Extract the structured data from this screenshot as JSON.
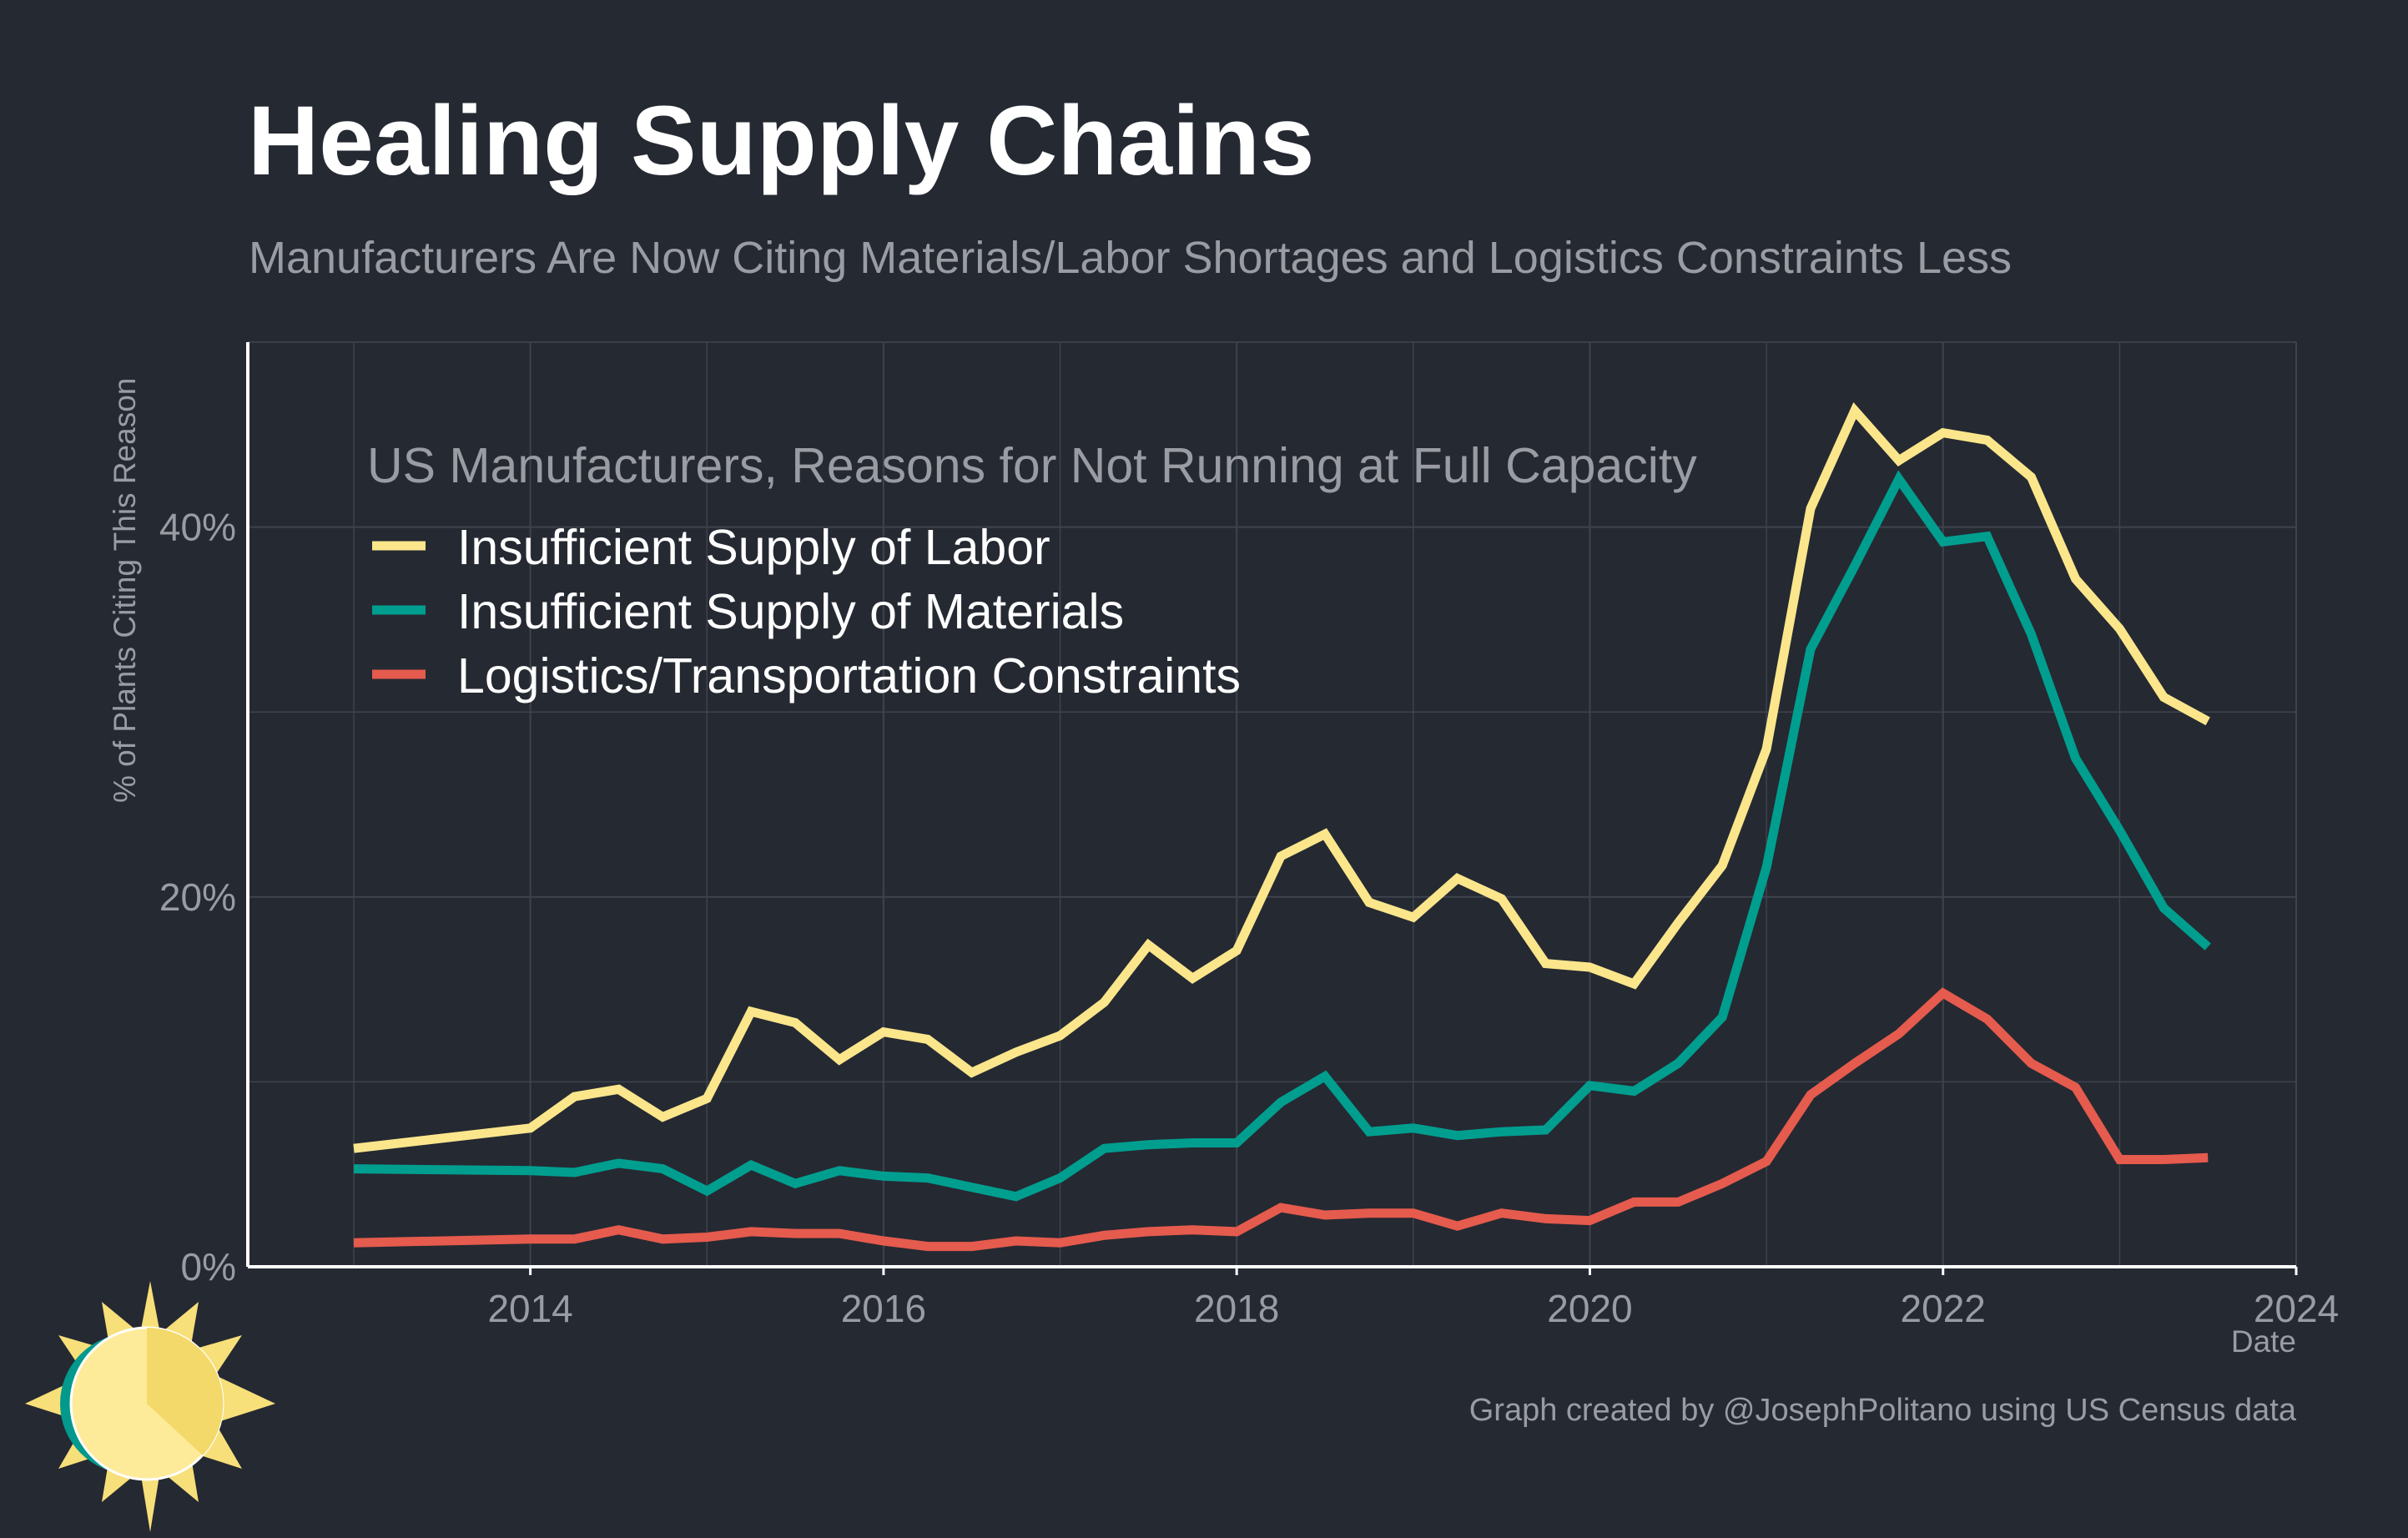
{
  "header": {
    "title": "Healing Supply Chains",
    "subtitle": "Manufacturers Are Now Citing Materials/Labor Shortages and Logistics Constraints Less"
  },
  "caption": "Graph created by @JosephPolitano using US Census data",
  "colors": {
    "background": "#252932",
    "grid": "#3f434c",
    "axis": "#ffffff",
    "muted_text": "#9a9ca3",
    "labor": "#fbe68c",
    "materials": "#009e8f",
    "logistics": "#e55b4d",
    "logo_sun": "#f7df7a",
    "logo_sun_face": "#fdeb9a",
    "logo_ring": "#03998c"
  },
  "logo": {
    "icon": "sun-icon"
  },
  "chart_data": {
    "type": "line",
    "title": "Healing Supply Chains",
    "subtitle": "Manufacturers Are Now Citing Materials/Labor Shortages and Logistics Constraints Less",
    "xlabel": "Date",
    "ylabel": "% of Plants Citing This Reason",
    "xlim": [
      2012.4,
      2024
    ],
    "ylim": [
      0,
      50
    ],
    "x_ticks": [
      2014,
      2016,
      2018,
      2020,
      2022,
      2024
    ],
    "x_tick_labels": [
      "2014",
      "2016",
      "2018",
      "2020",
      "2022",
      "2024"
    ],
    "y_ticks": [
      0,
      20,
      40
    ],
    "y_tick_labels": [
      "0%",
      "20%",
      "40%"
    ],
    "grid": true,
    "legend": {
      "title": "US Manufacturers, Reasons for Not Running at Full Capacity",
      "placement": "top-left"
    },
    "x": [
      2013.0,
      2014.0,
      2014.25,
      2014.5,
      2014.75,
      2015.0,
      2015.25,
      2015.5,
      2015.75,
      2016.0,
      2016.25,
      2016.5,
      2016.75,
      2017.0,
      2017.25,
      2017.5,
      2017.75,
      2018.0,
      2018.25,
      2018.5,
      2018.75,
      2019.0,
      2019.25,
      2019.5,
      2019.75,
      2020.0,
      2020.25,
      2020.5,
      2020.75,
      2021.0,
      2021.25,
      2021.5,
      2021.75,
      2022.0,
      2022.25,
      2022.5,
      2022.75,
      2023.0,
      2023.25,
      2023.5
    ],
    "series": [
      {
        "name": "Insufficient Supply of Labor",
        "color": "#fbe68c",
        "values": [
          6.4,
          7.5,
          9.2,
          9.6,
          8.1,
          9.1,
          13.8,
          13.2,
          11.2,
          12.7,
          12.3,
          10.5,
          11.6,
          12.5,
          14.3,
          17.4,
          15.6,
          17.1,
          22.2,
          23.4,
          19.7,
          18.9,
          21.0,
          19.9,
          16.4,
          16.2,
          15.3,
          18.6,
          21.7,
          28.0,
          41.0,
          46.3,
          43.6,
          45.1,
          44.7,
          42.7,
          37.2,
          34.5,
          30.8,
          29.5
        ]
      },
      {
        "name": "Insufficient Supply of Materials",
        "color": "#009e8f",
        "values": [
          5.3,
          5.2,
          5.1,
          5.6,
          5.3,
          4.1,
          5.5,
          4.5,
          5.2,
          4.9,
          4.8,
          4.3,
          3.8,
          4.8,
          6.4,
          6.6,
          6.7,
          6.7,
          8.9,
          10.3,
          7.3,
          7.5,
          7.1,
          7.3,
          7.4,
          9.8,
          9.5,
          11.0,
          13.5,
          21.6,
          33.4,
          37.9,
          42.6,
          39.2,
          39.5,
          34.2,
          27.5,
          23.6,
          19.4,
          17.3
        ]
      },
      {
        "name": "Logistics/Transportation Constraints",
        "color": "#e55b4d",
        "values": [
          1.3,
          1.5,
          1.5,
          2.0,
          1.5,
          1.6,
          1.9,
          1.8,
          1.8,
          1.4,
          1.1,
          1.1,
          1.4,
          1.3,
          1.7,
          1.9,
          2.0,
          1.9,
          3.2,
          2.8,
          2.9,
          2.9,
          2.2,
          2.9,
          2.6,
          2.5,
          3.5,
          3.5,
          4.5,
          5.7,
          9.3,
          11.0,
          12.6,
          14.8,
          13.4,
          11.0,
          9.7,
          5.8,
          5.8,
          5.9
        ]
      }
    ]
  }
}
